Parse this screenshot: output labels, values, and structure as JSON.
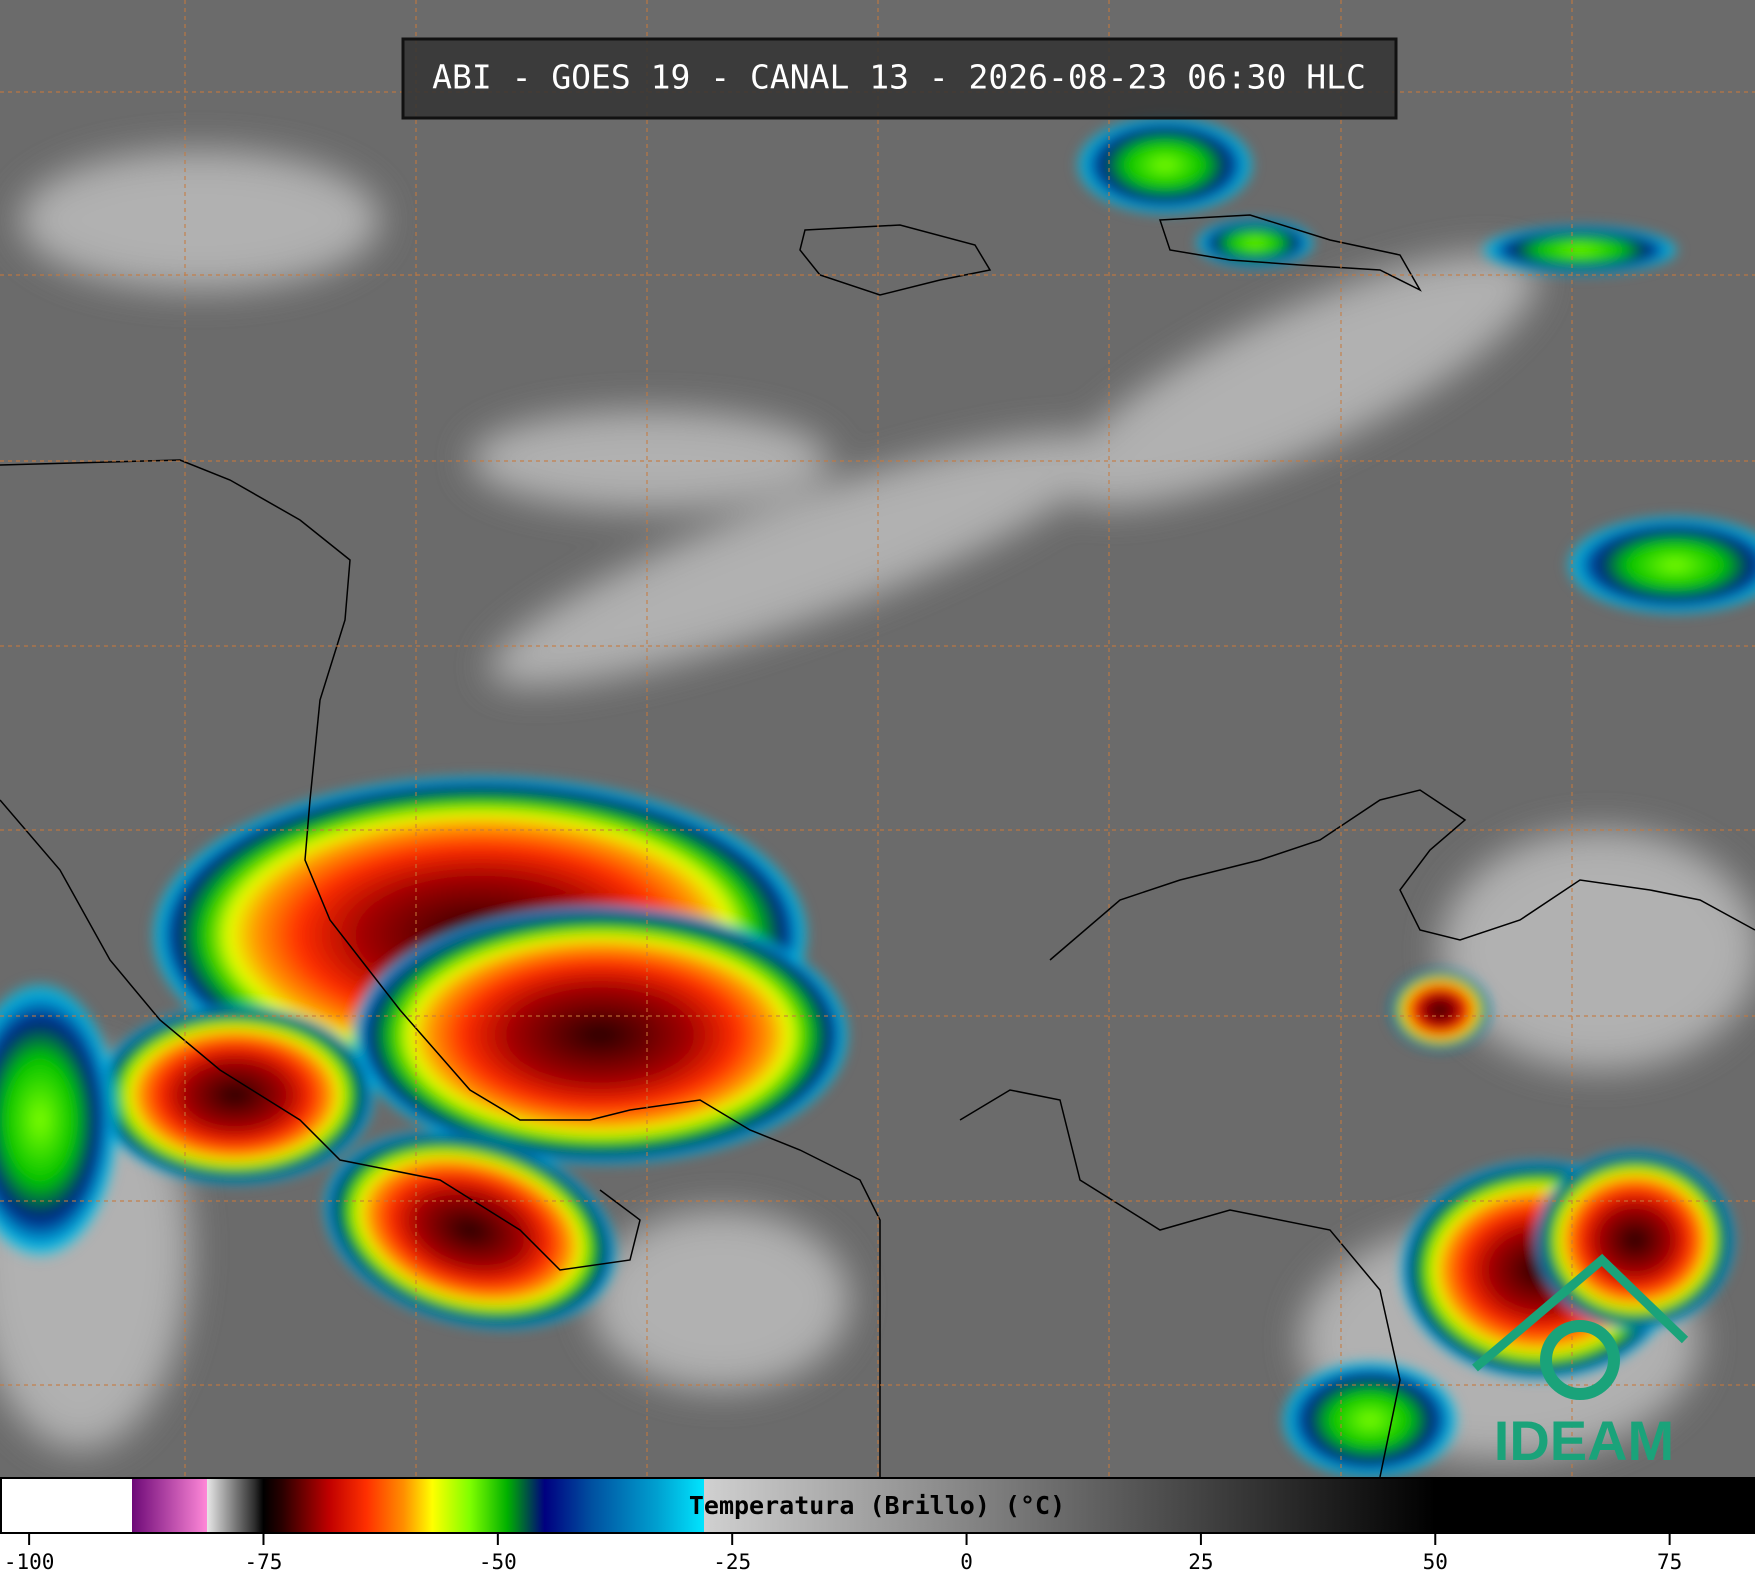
{
  "title": "ABI - GOES 19 - CANAL 13 - 2026-08-23 06:30 HLC",
  "logo": "IDEAM",
  "colorbar": {
    "label": "Temperatura (Brillo) (°C)",
    "range": [
      -103,
      84
    ],
    "ticks": [
      -100,
      -75,
      -50,
      -25,
      0,
      25,
      50,
      75
    ],
    "stops": [
      {
        "value": -103,
        "color": "#ffffff"
      },
      {
        "value": -89,
        "color": "#ffffff"
      },
      {
        "value": -89,
        "color": "#6e0a78"
      },
      {
        "value": -81,
        "color": "#ff88d8"
      },
      {
        "value": -81,
        "color": "#e6e6e6"
      },
      {
        "value": -76,
        "color": "#303030"
      },
      {
        "value": -75,
        "color": "#000000"
      },
      {
        "value": -73,
        "color": "#2a0000"
      },
      {
        "value": -68,
        "color": "#c00000"
      },
      {
        "value": -64,
        "color": "#ff3000"
      },
      {
        "value": -60,
        "color": "#ff9000"
      },
      {
        "value": -57,
        "color": "#ffff00"
      },
      {
        "value": -53,
        "color": "#80ff00"
      },
      {
        "value": -49,
        "color": "#00b000"
      },
      {
        "value": -45,
        "color": "#000080"
      },
      {
        "value": -40,
        "color": "#0050a0"
      },
      {
        "value": -33,
        "color": "#00a0d0"
      },
      {
        "value": -28,
        "color": "#00e5ff"
      },
      {
        "value": -28,
        "color": "#d0d0d0"
      },
      {
        "value": 50,
        "color": "#000000"
      },
      {
        "value": 84,
        "color": "#000000"
      }
    ]
  }
}
